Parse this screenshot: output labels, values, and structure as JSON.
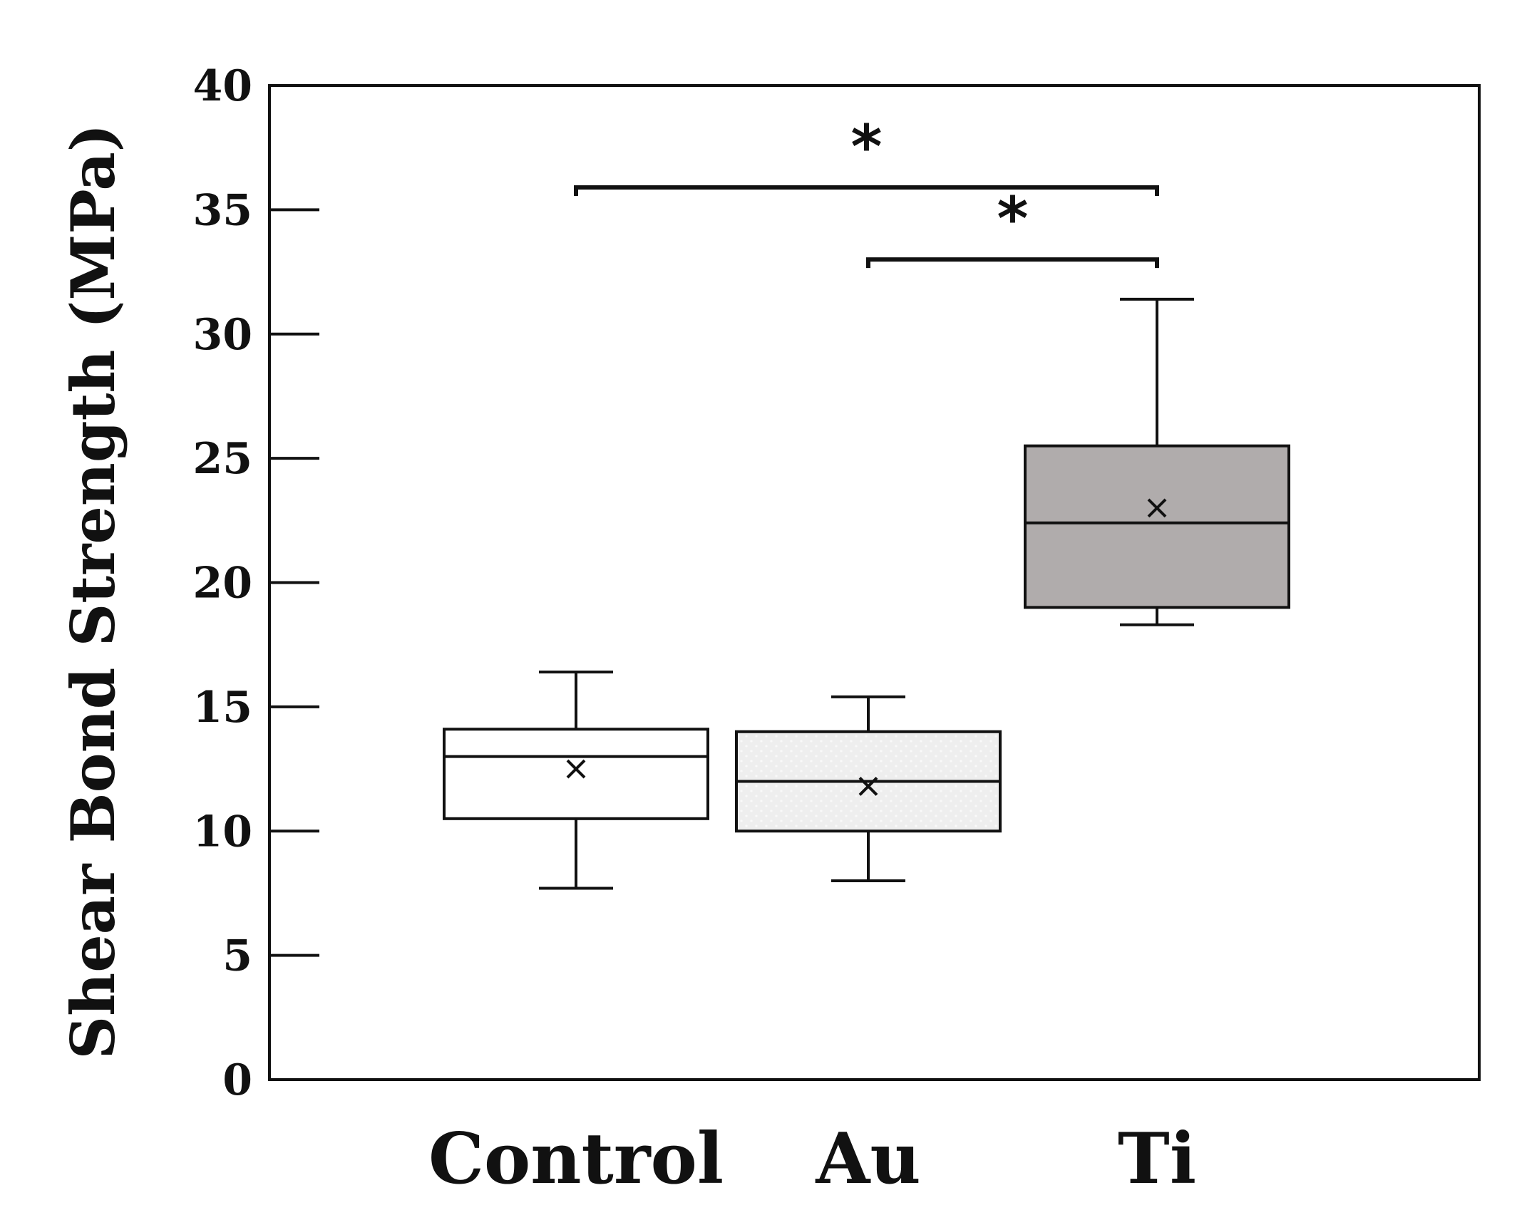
{
  "chart_data": {
    "type": "box",
    "ylabel": "Shear Bond Strength (MPa)",
    "xlabel": "",
    "title": "",
    "ylim": [
      0,
      40
    ],
    "yticks": [
      0,
      5,
      10,
      15,
      20,
      25,
      30,
      35,
      40
    ],
    "grid": false,
    "categories": [
      "Control",
      "Au",
      "Ti"
    ],
    "boxes": [
      {
        "category": "Control",
        "min": 7.7,
        "q1": 10.5,
        "median": 13.0,
        "q3": 14.1,
        "max": 16.4,
        "mean": 12.5,
        "fill": "#ffffff"
      },
      {
        "category": "Au",
        "min": 8.0,
        "q1": 10.0,
        "median": 12.0,
        "q3": 14.0,
        "max": 15.4,
        "mean": 11.8,
        "fill": "#eeeeee"
      },
      {
        "category": "Ti",
        "min": 18.3,
        "q1": 19.0,
        "median": 22.4,
        "q3": 25.5,
        "max": 31.4,
        "mean": 23.0,
        "fill": "#b0acac"
      }
    ],
    "significance": [
      {
        "from": "Control",
        "to": "Ti",
        "y": 35.9,
        "label": "*"
      },
      {
        "from": "Au",
        "to": "Ti",
        "y": 33.0,
        "label": "*"
      }
    ]
  }
}
